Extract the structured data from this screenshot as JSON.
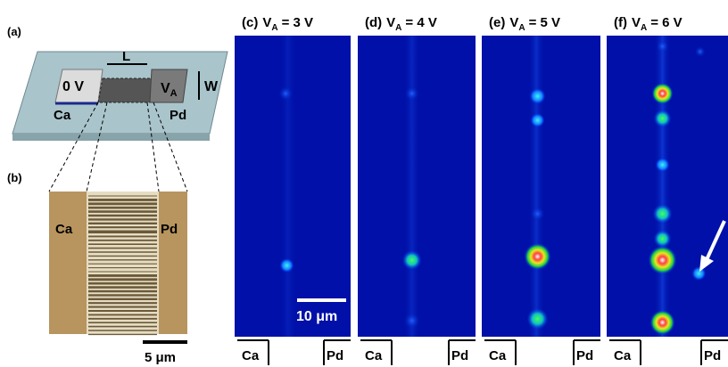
{
  "figure": {
    "a": {
      "label": "(a)",
      "left_voltage": "0 V",
      "length": "L",
      "right_voltage": {
        "var": "V",
        "sub": "A"
      },
      "width": "W",
      "left_metal": "Ca",
      "right_metal": "Pd"
    },
    "b": {
      "label": "(b)",
      "left_metal": "Ca",
      "right_metal": "Pd",
      "scale": "5 μm"
    },
    "panels": [
      {
        "label": "(c)",
        "var": "V",
        "sub": "A",
        "rest": "= 3 V",
        "left": "Ca",
        "right": "Pd"
      },
      {
        "label": "(d)",
        "var": "V",
        "sub": "A",
        "rest": "= 4 V",
        "left": "Ca",
        "right": "Pd"
      },
      {
        "label": "(e)",
        "var": "V",
        "sub": "A",
        "rest": "= 5 V",
        "left": "Ca",
        "right": "Pd"
      },
      {
        "label": "(f)",
        "var": "V",
        "sub": "A",
        "rest": "= 6 V",
        "left": "Ca",
        "right": "Pd"
      }
    ],
    "scale": "10 μm"
  }
}
